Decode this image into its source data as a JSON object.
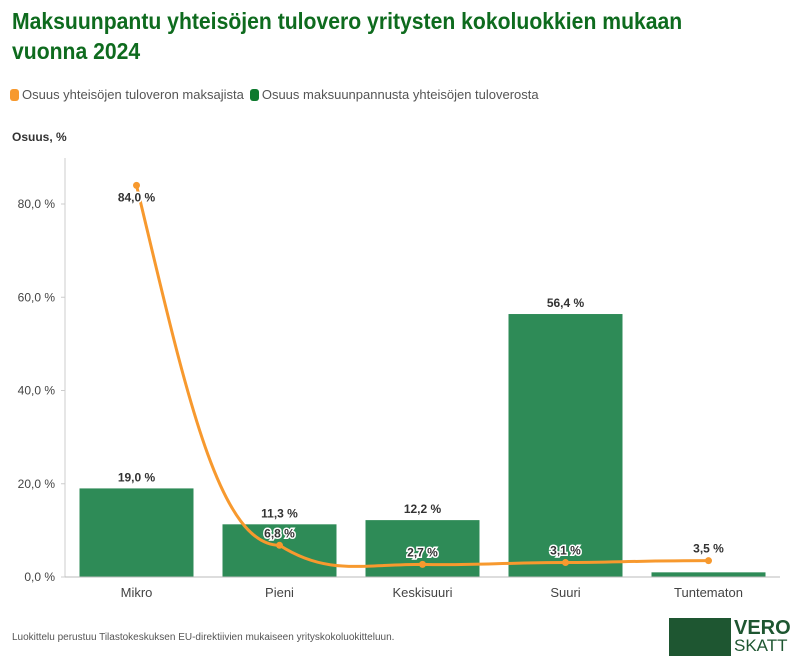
{
  "title": "Maksuunpantu yhteisöjen tulovero yritysten kokoluokkien mukaan vuonna 2024",
  "footnote": "Luokittelu perustuu Tilastokeskuksen EU-direktiivien mukaiseen yrityskokoluokitteluun.",
  "logo": {
    "line1": "VERO",
    "line2": "SKATT"
  },
  "chart_data": {
    "type": "bar+line",
    "ylabel": "Osuus, %",
    "ylim": [
      0,
      90
    ],
    "yticks": [
      0,
      20,
      40,
      60,
      80
    ],
    "ytick_labels": [
      "0,0 %",
      "20,0 %",
      "40,0 %",
      "60,0 %",
      "80,0 %"
    ],
    "categories": [
      "Mikro",
      "Pieni",
      "Keskisuuri",
      "Suuri",
      "Tuntematon"
    ],
    "legend_position": "top-left",
    "series": [
      {
        "name": "Osuus yhteisöjen tuloveron maksajista",
        "type": "line",
        "color": "#f7992e",
        "values": [
          84.0,
          6.8,
          2.7,
          3.1,
          3.5
        ],
        "labels": [
          "84,0 %",
          "6,8 %",
          "2,7 %",
          "3,1 %",
          "3,5 %"
        ]
      },
      {
        "name": "Osuus maksuunpannusta yhteisöjen tuloverosta",
        "type": "bar",
        "color": "#2e8b57",
        "legend_color": "#0e7a2e",
        "values": [
          19.0,
          11.3,
          12.2,
          56.4,
          1.0
        ],
        "labels": [
          "19,0 %",
          "11,3 %",
          "12,2 %",
          "56,4 %",
          ""
        ]
      }
    ]
  }
}
